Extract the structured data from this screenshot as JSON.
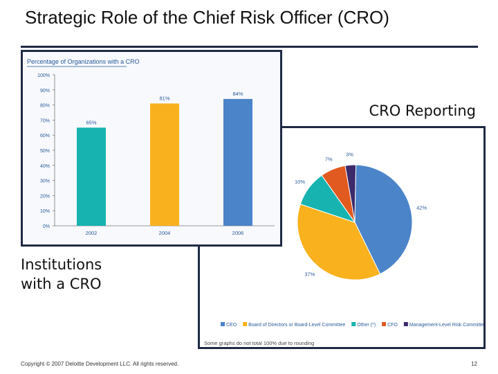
{
  "title": "Strategic Role of the Chief Risk Officer (CRO)",
  "pie_section_label": "CRO Reporting",
  "bar_section_label_line1": "Institutions",
  "bar_section_label_line2": "with a CRO",
  "footer": {
    "copyright": "Copyright © 2007 Deloitte Development LLC. All rights reserved.",
    "page_number": "12"
  },
  "colors": {
    "navy": "#1f2a44",
    "teal": "#17b3b1",
    "orange": "#f9b11d",
    "blue": "#4b84c9",
    "red": "#e15a1f",
    "purple": "#3c2a6b"
  },
  "chart_data": [
    {
      "type": "bar",
      "title": "Percentage of Organizations with a CRO",
      "categories": [
        "2002",
        "2004",
        "2006"
      ],
      "values": [
        65,
        81,
        84
      ],
      "value_labels": [
        "65%",
        "81%",
        "84%"
      ],
      "bar_colors": [
        "#17b3b1",
        "#f9b11d",
        "#4b84c9"
      ],
      "ylim": [
        0,
        100
      ],
      "yticks": [
        "100%",
        "90%",
        "80%",
        "70%",
        "60%",
        "50%",
        "40%",
        "30%",
        "20%",
        "10%",
        "0%"
      ],
      "xlabel": "",
      "ylabel": ""
    },
    {
      "type": "pie",
      "slices": [
        {
          "name": "CEO",
          "value": 42,
          "label": "42%",
          "color": "#4b84c9"
        },
        {
          "name": "Board of Directors or Board-Level Committee",
          "value": 37,
          "label": "37%",
          "color": "#f9b11d"
        },
        {
          "name": "Other (*)",
          "value": 10,
          "label": "10%",
          "color": "#17b3b1"
        },
        {
          "name": "CFO",
          "value": 7,
          "label": "7%",
          "color": "#e15a1f"
        },
        {
          "name": "Management-Level Risk Committee",
          "value": 3,
          "label": "3%",
          "color": "#3c2a6b"
        }
      ],
      "legend": [
        "CEO",
        "Board of Directors or Board-Level Committee",
        "Other (*)",
        "CFO",
        "Management-Level Risk Committee"
      ],
      "note": "Some graphs do not total 100% due to rounding"
    }
  ]
}
